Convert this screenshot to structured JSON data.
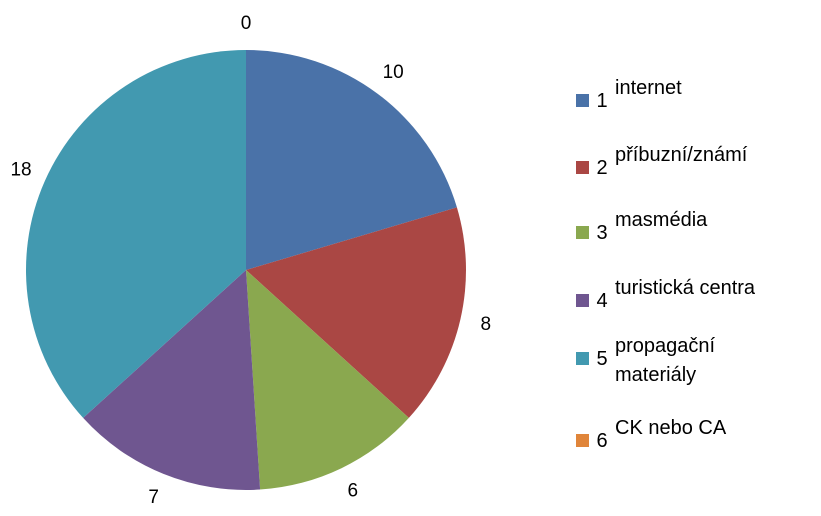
{
  "chart_data": {
    "type": "pie",
    "categories": [
      "1",
      "2",
      "3",
      "4",
      "5",
      "6"
    ],
    "category_labels": [
      "internet",
      "příbuzní/známí",
      "masmédia",
      "turistická centra",
      "propagační materiály",
      "CK nebo CA"
    ],
    "values": [
      10,
      8,
      6,
      7,
      18,
      0
    ],
    "colors": [
      "#4a72a8",
      "#aa4744",
      "#8aa84f",
      "#6f5690",
      "#4299b0",
      "#e0853a"
    ]
  }
}
